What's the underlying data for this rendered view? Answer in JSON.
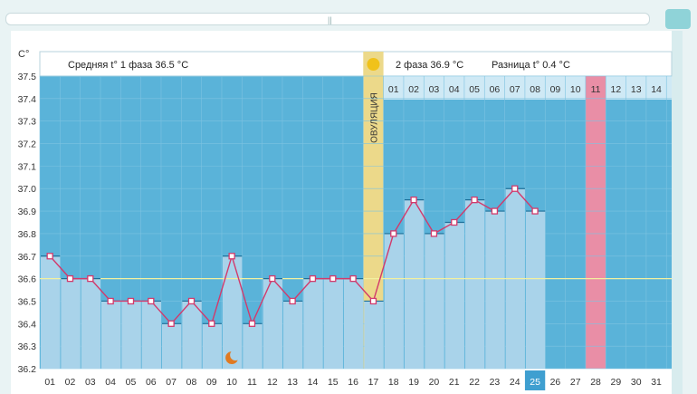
{
  "chart_data": {
    "type": "line",
    "ylabel": "C°",
    "ylim": [
      36.2,
      37.5
    ],
    "yticks": [
      "37.5",
      "37.4",
      "37.3",
      "37.2",
      "37.1",
      "37.0",
      "36.9",
      "36.8",
      "36.7",
      "36.6",
      "36.5",
      "36.4",
      "36.3",
      "36.2"
    ],
    "coverline": 36.6,
    "header": {
      "phase1": "Средняя t° 1 фаза 36.5 °C",
      "phase2": "2 фаза 36.9 °C",
      "diff": "Разница t° 0.4 °C"
    },
    "ovulation_label": "ОВУЛЯЦИЯ",
    "ovulation_day": "17",
    "today": "25",
    "highlight_day": "11",
    "x": [
      "01",
      "02",
      "03",
      "04",
      "05",
      "06",
      "07",
      "08",
      "09",
      "10",
      "11",
      "12",
      "13",
      "14",
      "15",
      "16",
      "17",
      "18",
      "19",
      "20",
      "21",
      "22",
      "23",
      "24",
      "25",
      "26",
      "27",
      "28",
      "29",
      "30",
      "31"
    ],
    "values": [
      36.7,
      36.6,
      36.6,
      36.5,
      36.5,
      36.5,
      36.4,
      36.5,
      36.4,
      36.7,
      36.4,
      36.6,
      36.5,
      36.6,
      36.6,
      36.6,
      36.5,
      36.8,
      36.95,
      36.8,
      36.85,
      36.95,
      36.9,
      37.0,
      36.9,
      null,
      null,
      null,
      null,
      null,
      null
    ],
    "luteal_days": [
      "01",
      "02",
      "03",
      "04",
      "05",
      "06",
      "07",
      "08",
      "09",
      "10",
      "11",
      "12",
      "13",
      "14"
    ],
    "colors": {
      "chart_bg": "#5ab3d9",
      "bar": "#a9d3ea",
      "line": "#d23a6c",
      "ovulation": "#ecd98a",
      "coverline": "#f2f0a0",
      "highlight": "#e98ea6",
      "today": "#3f9fd0"
    },
    "icons": {
      "ovulation_marker": "sun-icon",
      "moon": "moon-icon"
    }
  }
}
